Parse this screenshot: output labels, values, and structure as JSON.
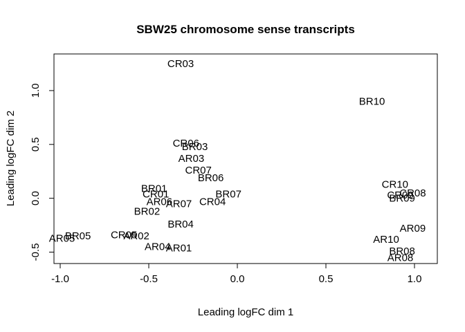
{
  "chart_data": {
    "type": "scatter",
    "title": "SBW25 chromosome sense transcripts",
    "xlabel": "Leading logFC dim 1",
    "ylabel": "Leading logFC dim 2",
    "xlim": [
      -1.0,
      1.0
    ],
    "ylim": [
      -0.5,
      1.0
    ],
    "xticks": [
      -1.0,
      -0.5,
      0.0,
      0.5,
      1.0
    ],
    "xtick_labels": [
      "-1.0",
      "-0.5",
      "0.0",
      "0.5",
      "1.0"
    ],
    "yticks": [
      -0.5,
      0.0,
      0.5,
      1.0
    ],
    "ytick_labels": [
      "-0.5",
      "0.0",
      "0.5",
      "1.0"
    ],
    "grid": false,
    "points": [
      {
        "label": "CR03",
        "x": -0.32,
        "y": 1.25
      },
      {
        "label": "BR10",
        "x": 0.76,
        "y": 0.9
      },
      {
        "label": "CR06",
        "x": -0.29,
        "y": 0.51
      },
      {
        "label": "BR03",
        "x": -0.24,
        "y": 0.48
      },
      {
        "label": "AR03",
        "x": -0.26,
        "y": 0.37
      },
      {
        "label": "CR07",
        "x": -0.22,
        "y": 0.26
      },
      {
        "label": "BR06",
        "x": -0.15,
        "y": 0.19
      },
      {
        "label": "BR01",
        "x": -0.47,
        "y": 0.09
      },
      {
        "label": "CR01",
        "x": -0.46,
        "y": 0.04
      },
      {
        "label": "AR06",
        "x": -0.44,
        "y": -0.03
      },
      {
        "label": "AR07",
        "x": -0.33,
        "y": -0.05
      },
      {
        "label": "BR02",
        "x": -0.51,
        "y": -0.12
      },
      {
        "label": "BR07",
        "x": -0.05,
        "y": 0.04
      },
      {
        "label": "CR04",
        "x": -0.14,
        "y": -0.03
      },
      {
        "label": "BR04",
        "x": -0.32,
        "y": -0.24
      },
      {
        "label": "BR05",
        "x": -0.9,
        "y": -0.35
      },
      {
        "label": "AR05",
        "x": -0.99,
        "y": -0.37
      },
      {
        "label": "CR05",
        "x": -0.64,
        "y": -0.34
      },
      {
        "label": "AR02",
        "x": -0.57,
        "y": -0.35
      },
      {
        "label": "AR04",
        "x": -0.45,
        "y": -0.45
      },
      {
        "label": "AR01",
        "x": -0.33,
        "y": -0.46
      },
      {
        "label": "CR10",
        "x": 0.89,
        "y": 0.13
      },
      {
        "label": "CR08",
        "x": 0.99,
        "y": 0.05
      },
      {
        "label": "CR09",
        "x": 0.92,
        "y": 0.03
      },
      {
        "label": "BR09",
        "x": 0.93,
        "y": 0.0
      },
      {
        "label": "AR09",
        "x": 0.99,
        "y": -0.28
      },
      {
        "label": "AR10",
        "x": 0.84,
        "y": -0.38
      },
      {
        "label": "BR08",
        "x": 0.93,
        "y": -0.49
      },
      {
        "label": "AR08",
        "x": 0.92,
        "y": -0.55
      }
    ]
  }
}
